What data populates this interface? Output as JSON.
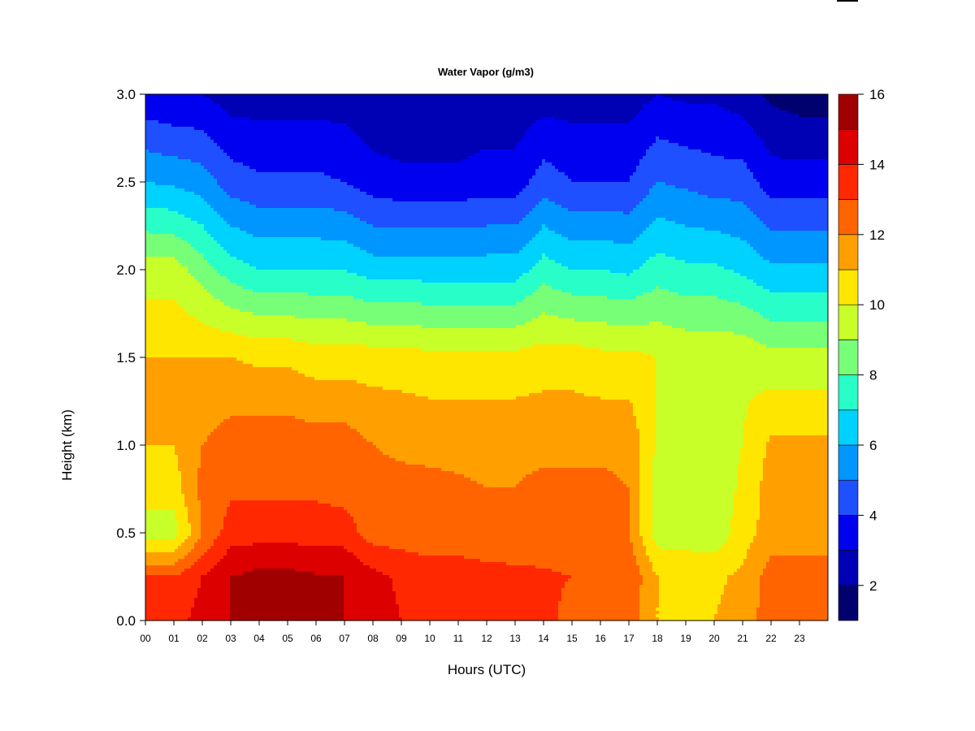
{
  "chart_data": {
    "type": "heatmap",
    "title": "Water Vapor (g/m3)",
    "xlabel": "Hours (UTC)",
    "ylabel": "Height (km)",
    "xlim": [
      0,
      24
    ],
    "ylim": [
      0.0,
      3.0
    ],
    "x_ticks": [
      "00",
      "01",
      "02",
      "03",
      "04",
      "05",
      "06",
      "07",
      "08",
      "09",
      "10",
      "11",
      "12",
      "13",
      "14",
      "15",
      "16",
      "17",
      "18",
      "19",
      "20",
      "21",
      "22",
      "23"
    ],
    "y_ticks": [
      "0.0",
      "0.5",
      "1.0",
      "1.5",
      "2.0",
      "2.5",
      "3.0"
    ],
    "colorbar": {
      "range": [
        1,
        16
      ],
      "ticks": [
        "2",
        "4",
        "6",
        "8",
        "10",
        "12",
        "14",
        "16"
      ],
      "levels": [
        1,
        2,
        3,
        4,
        5,
        6,
        7,
        8,
        9,
        10,
        11,
        12,
        13,
        14,
        15,
        16
      ],
      "colors": [
        "#00006e",
        "#0000b4",
        "#0000f0",
        "#1e50ff",
        "#0096ff",
        "#00d2ff",
        "#28ffc8",
        "#78ff78",
        "#c8ff28",
        "#ffe600",
        "#ffa000",
        "#ff6400",
        "#ff2800",
        "#dc0000",
        "#a00000"
      ]
    },
    "heights_km": [
      0.0,
      0.25,
      0.5,
      0.75,
      1.0,
      1.5,
      2.0,
      2.5,
      3.0
    ],
    "hours": [
      0,
      1,
      2,
      3,
      4,
      5,
      6,
      7,
      8,
      9,
      10,
      11,
      12,
      13,
      14,
      15,
      16,
      17,
      18,
      19,
      20,
      21,
      22,
      23
    ],
    "values": [
      [
        13.5,
        13.5,
        14.5,
        15.0,
        15.2,
        15.2,
        15.0,
        15.0,
        14.5,
        14.0,
        13.8,
        13.8,
        13.5,
        13.5,
        13.5,
        12.5,
        12.5,
        12.5,
        11.0,
        11.0,
        11.0,
        11.5,
        12.5,
        12.5
      ],
      [
        13.0,
        13.0,
        14.0,
        15.0,
        15.3,
        15.3,
        15.1,
        15.0,
        14.3,
        13.8,
        13.6,
        13.6,
        13.4,
        13.3,
        13.2,
        13.0,
        12.8,
        12.8,
        11.0,
        10.8,
        10.8,
        11.2,
        12.5,
        12.5
      ],
      [
        9.5,
        9.5,
        12.0,
        13.5,
        13.6,
        13.6,
        13.5,
        13.5,
        12.5,
        12.5,
        12.3,
        12.3,
        12.2,
        12.2,
        12.2,
        12.2,
        12.2,
        12.0,
        9.5,
        9.5,
        9.3,
        10.5,
        11.5,
        11.5
      ],
      [
        10.5,
        10.5,
        12.3,
        12.8,
        12.8,
        12.8,
        12.8,
        12.6,
        12.3,
        12.3,
        12.2,
        12.1,
        12.0,
        12.0,
        12.2,
        12.2,
        12.2,
        12.0,
        9.6,
        9.5,
        9.4,
        10.2,
        11.5,
        11.5
      ],
      [
        11.0,
        11.0,
        12.0,
        12.5,
        12.6,
        12.6,
        12.5,
        12.5,
        12.0,
        11.8,
        11.8,
        11.8,
        11.8,
        11.8,
        11.8,
        11.8,
        11.8,
        11.8,
        9.8,
        9.5,
        9.5,
        10.0,
        11.2,
        11.2
      ],
      [
        11.0,
        11.0,
        11.0,
        11.0,
        10.8,
        10.8,
        10.5,
        10.5,
        10.5,
        10.5,
        10.3,
        10.3,
        10.3,
        10.3,
        10.5,
        10.5,
        10.3,
        10.3,
        10.0,
        9.8,
        9.8,
        9.8,
        9.3,
        9.3
      ],
      [
        9.5,
        9.5,
        8.5,
        7.5,
        7.0,
        7.0,
        7.0,
        7.0,
        6.5,
        6.5,
        6.5,
        6.5,
        6.5,
        6.5,
        7.5,
        7.0,
        7.0,
        6.8,
        7.5,
        7.2,
        7.2,
        6.8,
        6.2,
        6.2
      ],
      [
        6.0,
        5.8,
        5.5,
        4.5,
        4.2,
        4.2,
        4.2,
        4.0,
        3.5,
        3.3,
        3.3,
        3.3,
        3.5,
        3.5,
        4.5,
        4.0,
        4.0,
        4.0,
        5.0,
        4.8,
        4.5,
        4.5,
        3.5,
        3.5
      ],
      [
        3.2,
        3.0,
        3.0,
        2.5,
        2.5,
        2.5,
        2.5,
        2.5,
        2.0,
        2.0,
        2.0,
        2.0,
        2.2,
        2.2,
        2.5,
        2.5,
        2.5,
        2.5,
        3.0,
        2.8,
        2.8,
        2.5,
        1.8,
        1.5
      ]
    ]
  }
}
